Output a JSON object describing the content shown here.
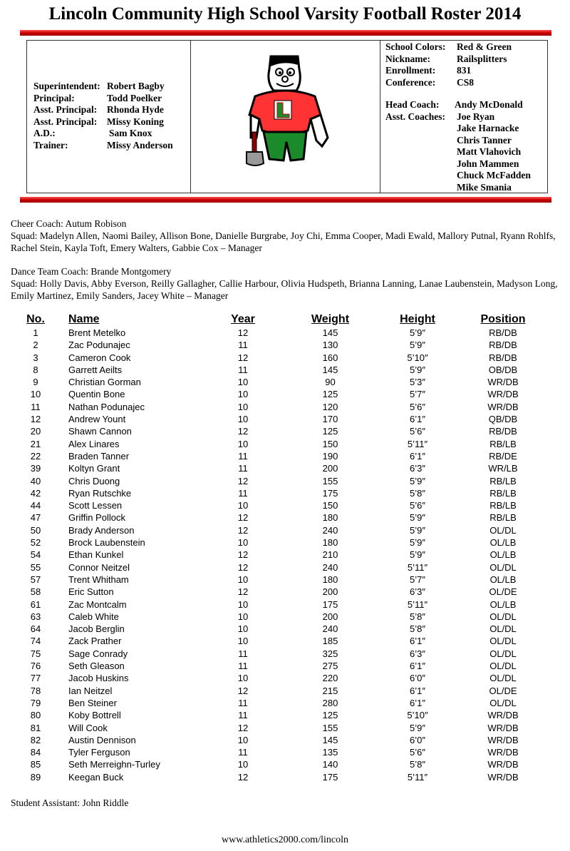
{
  "title": "Lincoln Community High School Varsity Football Roster 2014",
  "colors": {
    "accent_red": "#cc0000",
    "accent_green": "#1a8a2a"
  },
  "admin": [
    {
      "label": "Superintendent:",
      "value": "Robert Bagby"
    },
    {
      "label": "Principal:",
      "value": "Todd Poelker"
    },
    {
      "label": "Asst. Principal:",
      "value": "Rhonda Hyde"
    },
    {
      "label": "Asst. Principal:",
      "value": "Missy Koning"
    },
    {
      "label": "A.D.:",
      "value": "Sam Knox"
    },
    {
      "label": "Trainer:",
      "value": "Missy Anderson"
    }
  ],
  "logo": {
    "icon": "railsplitter-mascot-icon",
    "letter": "L"
  },
  "school_info": [
    {
      "label": "School Colors:",
      "value": "Red & Green"
    },
    {
      "label": "Nickname:",
      "value": "Railsplitters"
    },
    {
      "label": "Enrollment:",
      "value": "831"
    },
    {
      "label": "Conference:",
      "value": "CS8"
    }
  ],
  "coaches": {
    "head_label": "Head Coach:",
    "head": "Andy McDonald",
    "asst_label": "Asst. Coaches:",
    "assistants": [
      "Joe Ryan",
      "Jake Harnacke",
      "Chris Tanner",
      "Matt Vlahovich",
      "John Mammen",
      "Chuck McFadden",
      "Mike Smania"
    ]
  },
  "cheer": {
    "coach_line": "Cheer Coach:  Autum Robison",
    "squad_line": "Squad:   Madelyn Allen, Naomi Bailey, Allison Bone, Danielle Burgrabe, Joy Chi, Emma Cooper, Madi Ewald, Mallory Putnal, Ryann Rohlfs, Rachel Stein, Kayla Toft, Emery Walters, Gabbie Cox – Manager"
  },
  "dance": {
    "coach_line": "Dance Team Coach:  Brande Montgomery",
    "squad_line": "Squad:  Holly Davis, Abby Everson, Reilly Gallagher, Callie Harbour, Olivia Hudspeth, Brianna Lanning, Lanae Laubenstein, Madyson Long, Emily Martinez, Emily Sanders, Jacey White – Manager"
  },
  "roster": {
    "columns": [
      "No.",
      "Name",
      "Year",
      "Weight",
      "Height",
      "Position"
    ],
    "rows": [
      [
        "1",
        "Brent Metelko",
        "12",
        "145",
        "5’9″",
        "RB/DB"
      ],
      [
        "2",
        "Zac Podunajec",
        "11",
        "130",
        "5’9″",
        "RB/DB"
      ],
      [
        "3",
        "Cameron Cook",
        "12",
        "160",
        "5’10″",
        "RB/DB"
      ],
      [
        "8",
        "Garrett Aeilts",
        "11",
        "145",
        "5’9″",
        "OB/DB"
      ],
      [
        "9",
        "Christian Gorman",
        "10",
        "90",
        "5’3″",
        "WR/DB"
      ],
      [
        "10",
        "Quentin Bone",
        "10",
        "125",
        "5’7″",
        "WR/DB"
      ],
      [
        "11",
        "Nathan Podunajec",
        "10",
        "120",
        "5’6″",
        "WR/DB"
      ],
      [
        "12",
        "Andrew Yount",
        "10",
        "170",
        "6’1″",
        "QB/DB"
      ],
      [
        "20",
        "Shawn Cannon",
        "12",
        "125",
        "5’6″",
        "RB/DB"
      ],
      [
        "21",
        "Alex Linares",
        "10",
        "150",
        "5’11″",
        "RB/LB"
      ],
      [
        "22",
        "Braden Tanner",
        "11",
        "190",
        "6’1″",
        "RB/DE"
      ],
      [
        "39",
        "Koltyn Grant",
        "11",
        "200",
        "6’3″",
        "WR/LB"
      ],
      [
        "40",
        "Chris Duong",
        "12",
        "155",
        "5’9″",
        "RB/LB"
      ],
      [
        "42",
        "Ryan Rutschke",
        "11",
        "175",
        "5’8″",
        "RB/LB"
      ],
      [
        "44",
        "Scott Lessen",
        "10",
        "150",
        "5’6″",
        "RB/LB"
      ],
      [
        "47",
        "Griffin Pollock",
        "12",
        "180",
        "5’9″",
        "RB/LB"
      ],
      [
        "50",
        "Brady Anderson",
        "12",
        "240",
        "5’9″",
        "OL/DL"
      ],
      [
        "52",
        "Brock Laubenstein",
        "10",
        "180",
        "5’9″",
        "OL/LB"
      ],
      [
        "54",
        "Ethan Kunkel",
        "12",
        "210",
        "5’9″",
        "OL/LB"
      ],
      [
        "55",
        "Connor Neitzel",
        "12",
        "240",
        "5’11″",
        "OL/DL"
      ],
      [
        "57",
        "Trent Whitham",
        "10",
        "180",
        "5’7″",
        "OL/LB"
      ],
      [
        "58",
        "Eric Sutton",
        "12",
        "200",
        "6’3″",
        "OL/DE"
      ],
      [
        "61",
        "Zac Montcalm",
        "10",
        "175",
        "5’11″",
        "OL/LB"
      ],
      [
        "63",
        "Caleb White",
        "10",
        "200",
        "5’8″",
        "OL/DL"
      ],
      [
        "64",
        "Jacob Berglin",
        "10",
        "240",
        "5’8″",
        "OL/DL"
      ],
      [
        "74",
        "Zack Prather",
        "10",
        "185",
        "6’1″",
        "OL/DL"
      ],
      [
        "75",
        "Sage Conrady",
        "11",
        "325",
        "6’3″",
        "OL/DL"
      ],
      [
        "76",
        "Seth Gleason",
        "11",
        "275",
        "6’1″",
        "OL/DL"
      ],
      [
        "77",
        "Jacob Huskins",
        "10",
        "220",
        "6’0″",
        "OL/DL"
      ],
      [
        "78",
        "Ian Neitzel",
        "12",
        "215",
        "6’1″",
        "OL/DE"
      ],
      [
        "79",
        "Ben Steiner",
        "11",
        "280",
        "6’1″",
        "OL/DL"
      ],
      [
        "80",
        "Koby Bottrell",
        "11",
        "125",
        "5’10″",
        "WR/DB"
      ],
      [
        "81",
        "Will Cook",
        "12",
        "155",
        "5’9″",
        "WR/DB"
      ],
      [
        "82",
        "Austin Dennison",
        "10",
        "145",
        "6’0″",
        "WR/DB"
      ],
      [
        "84",
        "Tyler Ferguson",
        "11",
        "135",
        "5’6″",
        "WR/DB"
      ],
      [
        "85",
        "Seth Merreighn-Turley",
        "10",
        "140",
        "5’8″",
        "WR/DB"
      ],
      [
        "89",
        "Keegan Buck",
        "12",
        "175",
        "5’11″",
        "WR/DB"
      ]
    ]
  },
  "student_assistant": "Student Assistant:  John Riddle",
  "footer_url": "www.athletics2000.com/lincoln"
}
